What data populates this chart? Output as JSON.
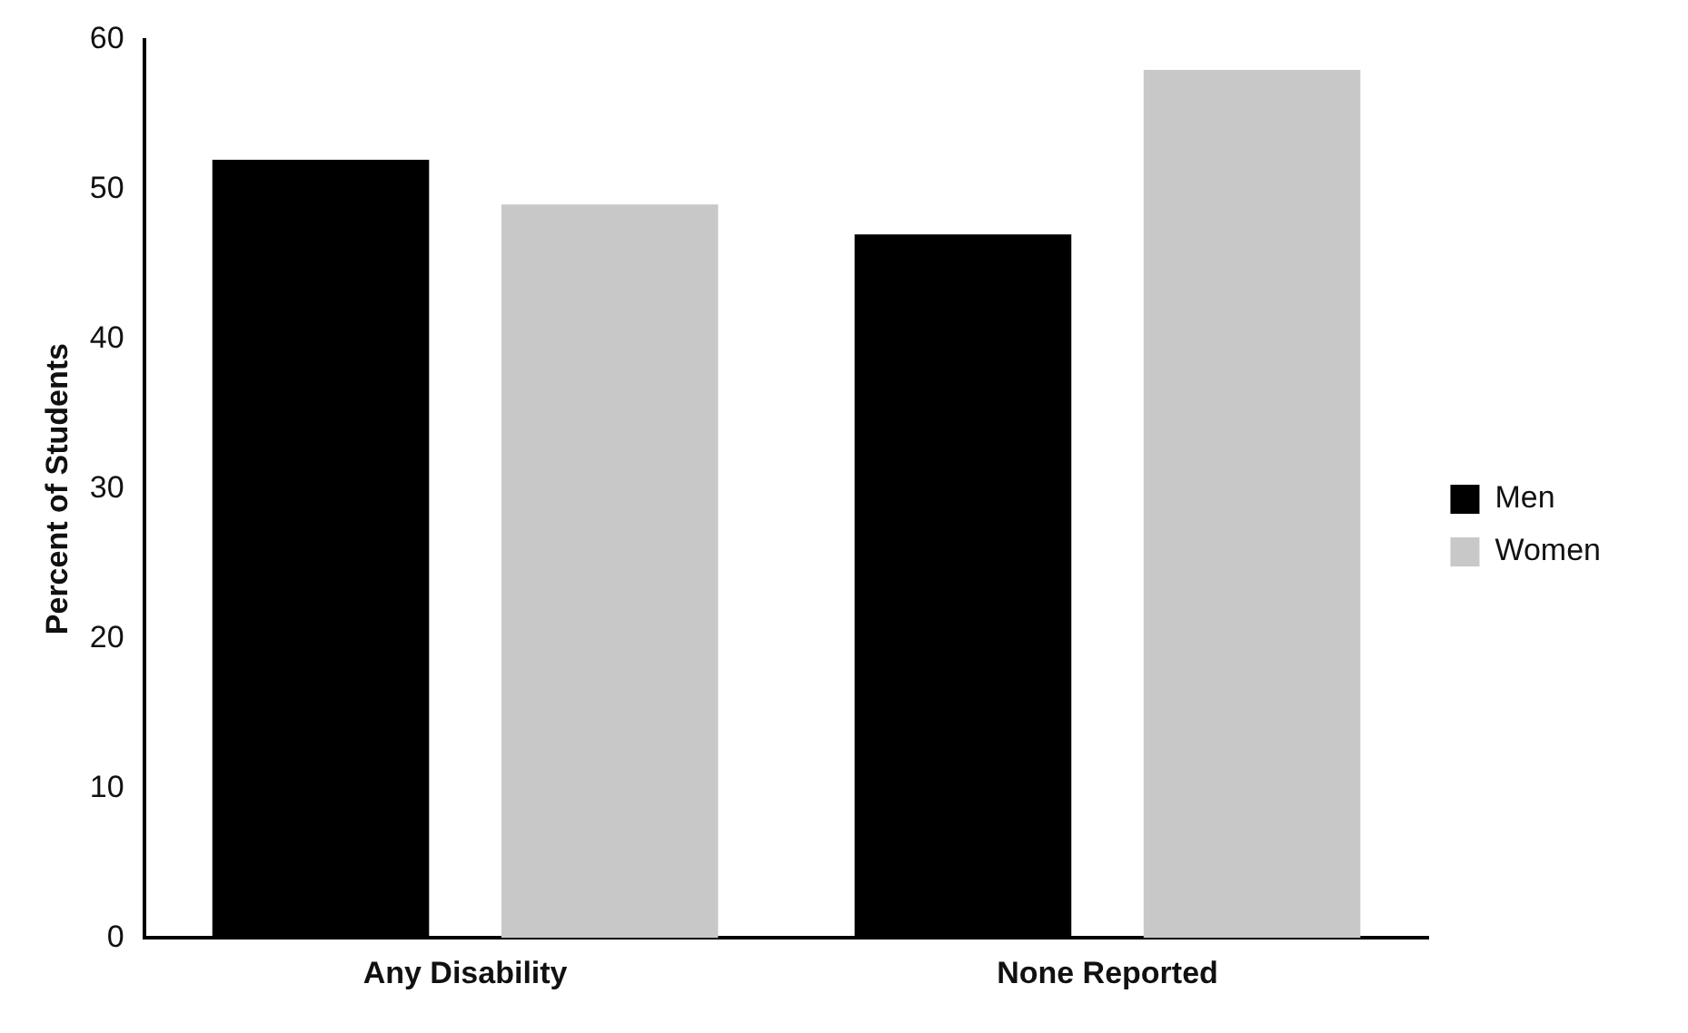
{
  "chart_data": {
    "type": "bar",
    "ylabel": "Percent of Students",
    "categories": [
      "Any Disability",
      "None Reported"
    ],
    "series": [
      {
        "name": "Men",
        "color": "#000000",
        "values": [
          52,
          47
        ]
      },
      {
        "name": "Women",
        "color": "#c8c8c8",
        "values": [
          49,
          58
        ]
      }
    ],
    "ylim": [
      0,
      60
    ],
    "yticks": [
      0,
      10,
      20,
      30,
      40,
      50,
      60
    ],
    "grid": false,
    "legend": "right"
  }
}
